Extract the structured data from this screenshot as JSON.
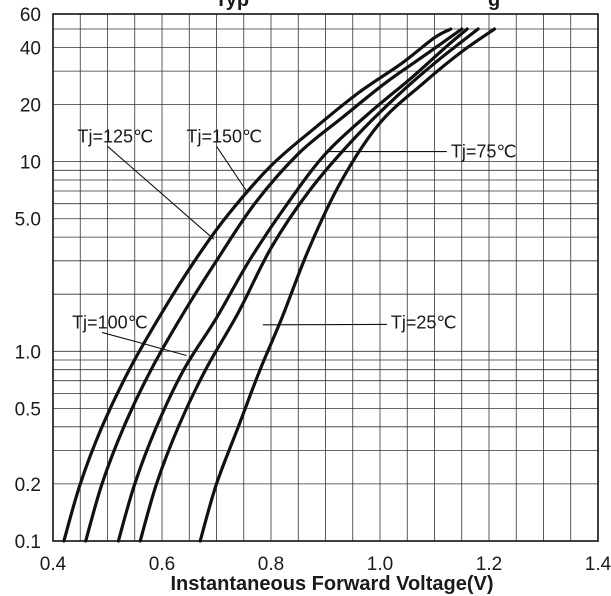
{
  "chart_data": {
    "type": "line",
    "title_fragment": "Typ",
    "title_fragment_tail": "g",
    "xlabel": "Instantaneous Forward Voltage(V)",
    "ylabel": "",
    "x_scale": "linear",
    "y_scale": "log",
    "xlim": [
      0.4,
      1.4
    ],
    "ylim": [
      0.1,
      60
    ],
    "x_ticks": [
      "0.4",
      "0.6",
      "0.8",
      "1.0",
      "1.2",
      "1.4"
    ],
    "y_ticks": [
      "0.1",
      "0.2",
      "0.5",
      "1.0",
      "5.0",
      "10",
      "20",
      "40",
      "60"
    ],
    "grid": true,
    "series": [
      {
        "name": "Tj=150℃",
        "x": [
          0.42,
          0.45,
          0.49,
          0.54,
          0.6,
          0.66,
          0.72,
          0.8,
          0.88,
          0.96,
          1.04,
          1.1,
          1.13
        ],
        "y": [
          0.1,
          0.2,
          0.4,
          0.8,
          1.6,
          3.0,
          5.2,
          9.5,
          15,
          23,
          33,
          45,
          50
        ]
      },
      {
        "name": "Tj=125℃",
        "x": [
          0.46,
          0.49,
          0.53,
          0.58,
          0.64,
          0.7,
          0.77,
          0.85,
          0.93,
          1.01,
          1.08,
          1.15
        ],
        "y": [
          0.1,
          0.2,
          0.4,
          0.8,
          1.6,
          3.0,
          6.0,
          11,
          17,
          26,
          36,
          50
        ]
      },
      {
        "name": "Tj=100℃",
        "x": [
          0.52,
          0.55,
          0.59,
          0.64,
          0.7,
          0.76,
          0.83,
          0.9,
          0.98,
          1.06,
          1.12,
          1.16
        ],
        "y": [
          0.1,
          0.2,
          0.4,
          0.8,
          1.5,
          3.0,
          6.0,
          11,
          18,
          28,
          40,
          50
        ]
      },
      {
        "name": "Tj=75℃",
        "x": [
          0.56,
          0.59,
          0.63,
          0.68,
          0.74,
          0.8,
          0.87,
          0.95,
          1.03,
          1.1,
          1.18
        ],
        "y": [
          0.1,
          0.2,
          0.4,
          0.8,
          1.6,
          3.5,
          7.0,
          13,
          22,
          33,
          50
        ]
      },
      {
        "name": "Tj=25℃",
        "x": [
          0.67,
          0.7,
          0.74,
          0.78,
          0.82,
          0.87,
          0.93,
          1.0,
          1.08,
          1.15,
          1.21
        ],
        "y": [
          0.1,
          0.2,
          0.4,
          0.8,
          1.5,
          3.5,
          8.0,
          16,
          26,
          38,
          50
        ]
      }
    ],
    "annotations": [
      {
        "text": "Tj=125℃",
        "label_x": 0.445,
        "label_y": 13.6,
        "target_x": 0.695,
        "target_y": 3.9
      },
      {
        "text": "Tj=150℃",
        "label_x": 0.645,
        "label_y": 13.6,
        "target_x": 0.755,
        "target_y": 7.0
      },
      {
        "text": "Tj=75℃",
        "label_x": 1.13,
        "label_y": 11.3,
        "target_x": 0.9,
        "target_y": 11.3
      },
      {
        "text": "Tj=100℃",
        "label_x": 0.435,
        "label_y": 1.42,
        "target_x": 0.645,
        "target_y": 0.95
      },
      {
        "text": "Tj=25℃",
        "label_x": 1.02,
        "label_y": 1.42,
        "target_x": 0.785,
        "target_y": 1.38
      }
    ]
  }
}
